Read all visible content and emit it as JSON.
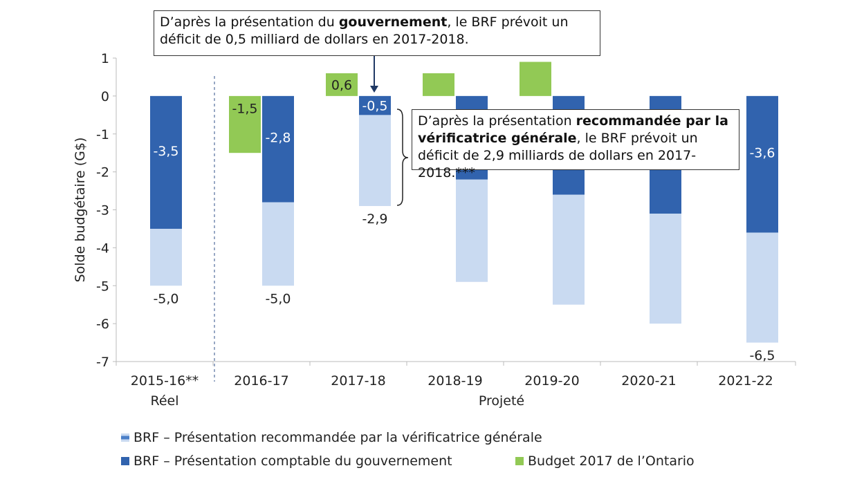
{
  "chart_data": {
    "type": "bar",
    "ylabel": "Solde budgétaire (G$)",
    "ylim": [
      -7,
      1
    ],
    "yticks": [
      1,
      0,
      -1,
      -2,
      -3,
      -4,
      -5,
      -6,
      -7
    ],
    "categories": [
      "2015-16**",
      "2016-17",
      "2017-18",
      "2018-19",
      "2019-20",
      "2020-21",
      "2021-22"
    ],
    "group_labels": [
      {
        "label": "Réel",
        "categories": [
          "2015-16**"
        ]
      },
      {
        "label": "Projeté",
        "categories": [
          "2016-17",
          "2017-18",
          "2018-19",
          "2019-20",
          "2020-21",
          "2021-22"
        ]
      }
    ],
    "series": [
      {
        "name": "BRF – Présentation recommandée par la vérificatrice générale",
        "color": "#c9daf1",
        "values": [
          -5.0,
          -5.0,
          -2.9,
          -4.9,
          -5.5,
          -6.0,
          -6.5
        ],
        "labels": [
          "-5,0",
          "-5,0",
          "-2,9",
          "",
          "",
          "",
          "-6,5"
        ]
      },
      {
        "name": "BRF – Présentation comptable du gouvernement",
        "color": "#3163ae",
        "values": [
          -3.5,
          -2.8,
          -0.5,
          -2.2,
          -2.6,
          -3.1,
          -3.6
        ],
        "labels": [
          "-3,5",
          "-2,8",
          "-0,5",
          "",
          "",
          "",
          "-3,6"
        ]
      },
      {
        "name": "Budget 2017 de l’Ontario",
        "color": "#92c955",
        "values": [
          null,
          -1.5,
          0.6,
          0.6,
          0.9,
          null,
          null
        ],
        "labels": [
          "",
          "-1,5",
          "0,6",
          "",
          "",
          "",
          ""
        ]
      }
    ],
    "annotations": [
      {
        "text_before": "D’après la présentation du ",
        "bold": "gouvernement",
        "text_after": ", le BRF prévoit un déficit de 0,5 milliard de dollars en 2017-2018."
      },
      {
        "text_before": "D’après la présentation ",
        "bold": "recommandée par la vérificatrice générale",
        "text_after": ", le BRF prévoit un déficit de 2,9 milliards de dollars en 2017-2018.***"
      }
    ],
    "grid": false,
    "legend_position": "bottom"
  }
}
